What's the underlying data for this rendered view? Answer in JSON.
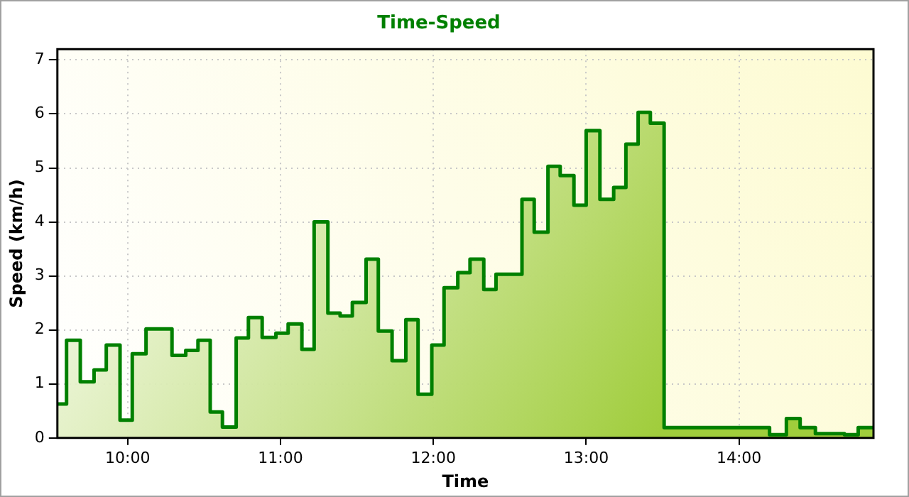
{
  "chart_data": {
    "type": "area",
    "title": "Time-Speed",
    "xlabel": "Time",
    "ylabel": "Speed (km/h)",
    "x": [
      9.54,
      9.6,
      9.6,
      9.69,
      9.69,
      9.78,
      9.78,
      9.86,
      9.86,
      9.95,
      9.95,
      10.03,
      10.03,
      10.12,
      10.12,
      10.29,
      10.29,
      10.38,
      10.38,
      10.46,
      10.46,
      10.54,
      10.54,
      10.62,
      10.62,
      10.71,
      10.71,
      10.79,
      10.79,
      10.88,
      10.88,
      10.97,
      10.97,
      11.05,
      11.05,
      11.14,
      11.14,
      11.22,
      11.22,
      11.31,
      11.31,
      11.39,
      11.39,
      11.47,
      11.47,
      11.56,
      11.56,
      11.64,
      11.64,
      11.73,
      11.73,
      11.82,
      11.82,
      11.9,
      11.9,
      11.99,
      11.99,
      12.07,
      12.07,
      12.16,
      12.16,
      12.24,
      12.24,
      12.33,
      12.33,
      12.41,
      12.41,
      12.58,
      12.58,
      12.66,
      12.66,
      12.75,
      12.75,
      12.83,
      12.83,
      12.92,
      12.92,
      13.0,
      13.0,
      13.09,
      13.09,
      13.18,
      13.18,
      13.26,
      13.26,
      13.34,
      13.34,
      13.42,
      13.42,
      13.51,
      13.51,
      14.2,
      14.2,
      14.31,
      14.31,
      14.4,
      14.4,
      14.5,
      14.5,
      14.69,
      14.69,
      14.78,
      14.78,
      14.88
    ],
    "series": [
      {
        "color": "#008000",
        "values": [
          0.63,
          0.63,
          1.81,
          1.81,
          1.04,
          1.04,
          1.26,
          1.26,
          1.72,
          1.72,
          0.33,
          0.33,
          1.56,
          1.56,
          2.02,
          2.02,
          1.53,
          1.53,
          1.62,
          1.62,
          1.81,
          1.81,
          0.48,
          0.48,
          0.2,
          0.2,
          1.85,
          1.85,
          2.23,
          2.23,
          1.86,
          1.86,
          1.94,
          1.94,
          2.11,
          2.11,
          1.64,
          1.64,
          4.0,
          4.0,
          2.31,
          2.31,
          2.26,
          2.26,
          2.51,
          2.51,
          3.31,
          3.31,
          1.98,
          1.98,
          1.43,
          1.43,
          2.19,
          2.19,
          0.81,
          0.81,
          1.72,
          1.72,
          2.78,
          2.78,
          3.06,
          3.06,
          3.31,
          3.31,
          2.75,
          2.75,
          3.03,
          3.03,
          4.42,
          4.42,
          3.81,
          3.81,
          5.03,
          5.03,
          4.86,
          4.86,
          4.31,
          4.31,
          5.69,
          5.69,
          4.42,
          4.42,
          4.64,
          4.64,
          5.44,
          5.44,
          6.03,
          6.03,
          5.83,
          5.83,
          0.19,
          0.19,
          0.06,
          0.06,
          0.36,
          0.36,
          0.19,
          0.19,
          0.08,
          0.08,
          0.06,
          0.06,
          0.19,
          0.19
        ]
      }
    ],
    "xlim": [
      9.54,
      14.88
    ],
    "xticks": [
      {
        "value": 10,
        "label": "10:00"
      },
      {
        "value": 11,
        "label": "11:00"
      },
      {
        "value": 12,
        "label": "12:00"
      },
      {
        "value": 13,
        "label": "13:00"
      },
      {
        "value": 14,
        "label": "14:00"
      }
    ],
    "ylim": [
      0,
      7.2
    ],
    "yticks": [
      0,
      1,
      2,
      3,
      4,
      5,
      6,
      7
    ],
    "grid": true,
    "legend": false,
    "marker": "none",
    "line_style": "solid"
  }
}
